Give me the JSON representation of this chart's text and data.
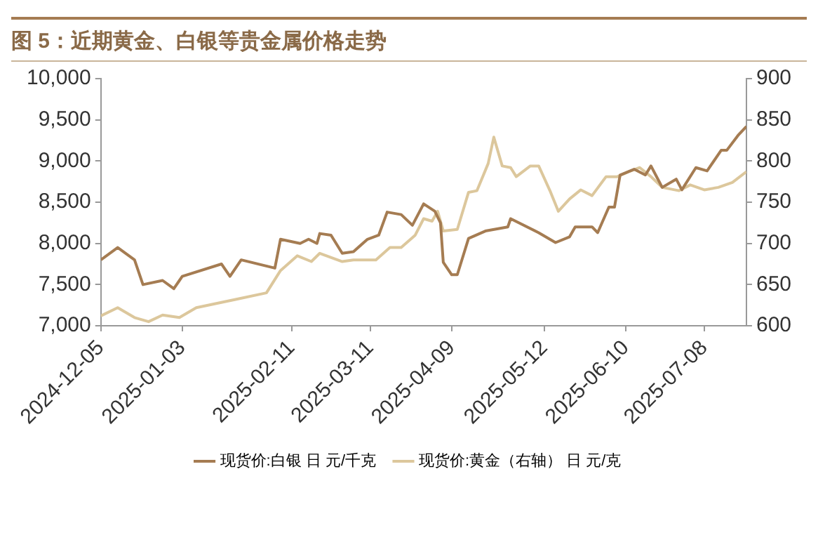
{
  "chart_data": {
    "type": "line",
    "title": "图 5：近期黄金、白银等贵金属价格走势",
    "xlim": [
      "2024-12-05",
      "2025-07-23"
    ],
    "xticks": [
      "2024-12-05",
      "2025-01-03",
      "2025-02-11",
      "2025-03-11",
      "2025-04-09",
      "2025-05-12",
      "2025-06-10",
      "2025-07-08"
    ],
    "ylim": [
      7000,
      10000
    ],
    "yticks": [
      {
        "value": 7000,
        "label": "7,000"
      },
      {
        "value": 7500,
        "label": "7,500"
      },
      {
        "value": 8000,
        "label": "8,000"
      },
      {
        "value": 8500,
        "label": "8,500"
      },
      {
        "value": 9000,
        "label": "9,000"
      },
      {
        "value": 9500,
        "label": "9,500"
      },
      {
        "value": 10000,
        "label": "10,000"
      }
    ],
    "y2lim": [
      600,
      900
    ],
    "y2ticks": [
      600,
      650,
      700,
      750,
      800,
      850,
      900
    ],
    "grid": false,
    "legend": "bottom",
    "marker": "none",
    "line_style": "solid",
    "series": [
      {
        "name": "现货价:白银 日 元/千克",
        "color": "#a57c52",
        "x": [
          "2024-12-05",
          "2024-12-11",
          "2024-12-17",
          "2024-12-20",
          "2024-12-27",
          "2024-12-31",
          "2025-01-03",
          "2025-01-17",
          "2025-01-20",
          "2025-01-24",
          "2025-02-05",
          "2025-02-07",
          "2025-02-14",
          "2025-02-17",
          "2025-02-20",
          "2025-02-21",
          "2025-02-25",
          "2025-03-01",
          "2025-03-05",
          "2025-03-10",
          "2025-03-14",
          "2025-03-17",
          "2025-03-22",
          "2025-03-26",
          "2025-03-30",
          "2025-04-03",
          "2025-04-05",
          "2025-04-06",
          "2025-04-09",
          "2025-04-11",
          "2025-04-15",
          "2025-04-21",
          "2025-04-29",
          "2025-04-30",
          "2025-05-10",
          "2025-05-16",
          "2025-05-21",
          "2025-05-23",
          "2025-05-29",
          "2025-05-31",
          "2025-06-04",
          "2025-06-06",
          "2025-06-08",
          "2025-06-13",
          "2025-06-17",
          "2025-06-19",
          "2025-06-23",
          "2025-06-28",
          "2025-06-30",
          "2025-07-05",
          "2025-07-09",
          "2025-07-14",
          "2025-07-16",
          "2025-07-20",
          "2025-07-23"
        ],
        "values": [
          7800,
          7950,
          7800,
          7500,
          7550,
          7450,
          7600,
          7750,
          7600,
          7800,
          7700,
          8050,
          8000,
          8050,
          8000,
          8120,
          8100,
          7880,
          7900,
          8050,
          8100,
          8380,
          8350,
          8220,
          8480,
          8390,
          8250,
          7770,
          7620,
          7620,
          8060,
          8150,
          8200,
          8300,
          8130,
          8010,
          8080,
          8200,
          8200,
          8130,
          8440,
          8440,
          8830,
          8900,
          8830,
          8940,
          8680,
          8780,
          8650,
          8920,
          8880,
          9130,
          9130,
          9310,
          9420
        ]
      },
      {
        "name": "现货价:黄金（右轴） 日 元/克",
        "color": "#dcc79c",
        "axis": "y2",
        "x": [
          "2024-12-05",
          "2024-12-11",
          "2024-12-17",
          "2024-12-22",
          "2024-12-27",
          "2025-01-02",
          "2025-01-08",
          "2025-01-22",
          "2025-02-02",
          "2025-02-07",
          "2025-02-13",
          "2025-02-18",
          "2025-02-21",
          "2025-03-01",
          "2025-03-05",
          "2025-03-13",
          "2025-03-18",
          "2025-03-22",
          "2025-03-27",
          "2025-03-30",
          "2025-04-02",
          "2025-04-04",
          "2025-04-06",
          "2025-04-11",
          "2025-04-15",
          "2025-04-18",
          "2025-04-22",
          "2025-04-24",
          "2025-04-27",
          "2025-04-30",
          "2025-05-02",
          "2025-05-07",
          "2025-05-10",
          "2025-05-14",
          "2025-05-17",
          "2025-05-21",
          "2025-05-25",
          "2025-05-29",
          "2025-06-03",
          "2025-06-07",
          "2025-06-11",
          "2025-06-15",
          "2025-06-19",
          "2025-06-23",
          "2025-06-29",
          "2025-07-03",
          "2025-07-08",
          "2025-07-13",
          "2025-07-18",
          "2025-07-23"
        ],
        "values": [
          612,
          622,
          610,
          605,
          613,
          610,
          622,
          632,
          640,
          667,
          685,
          678,
          688,
          678,
          680,
          680,
          695,
          695,
          710,
          730,
          727,
          739,
          715,
          717,
          762,
          764,
          797,
          829,
          794,
          792,
          781,
          794,
          794,
          764,
          739,
          754,
          765,
          758,
          781,
          781,
          787,
          792,
          781,
          768,
          764,
          771,
          765,
          768,
          774,
          787
        ]
      }
    ]
  }
}
